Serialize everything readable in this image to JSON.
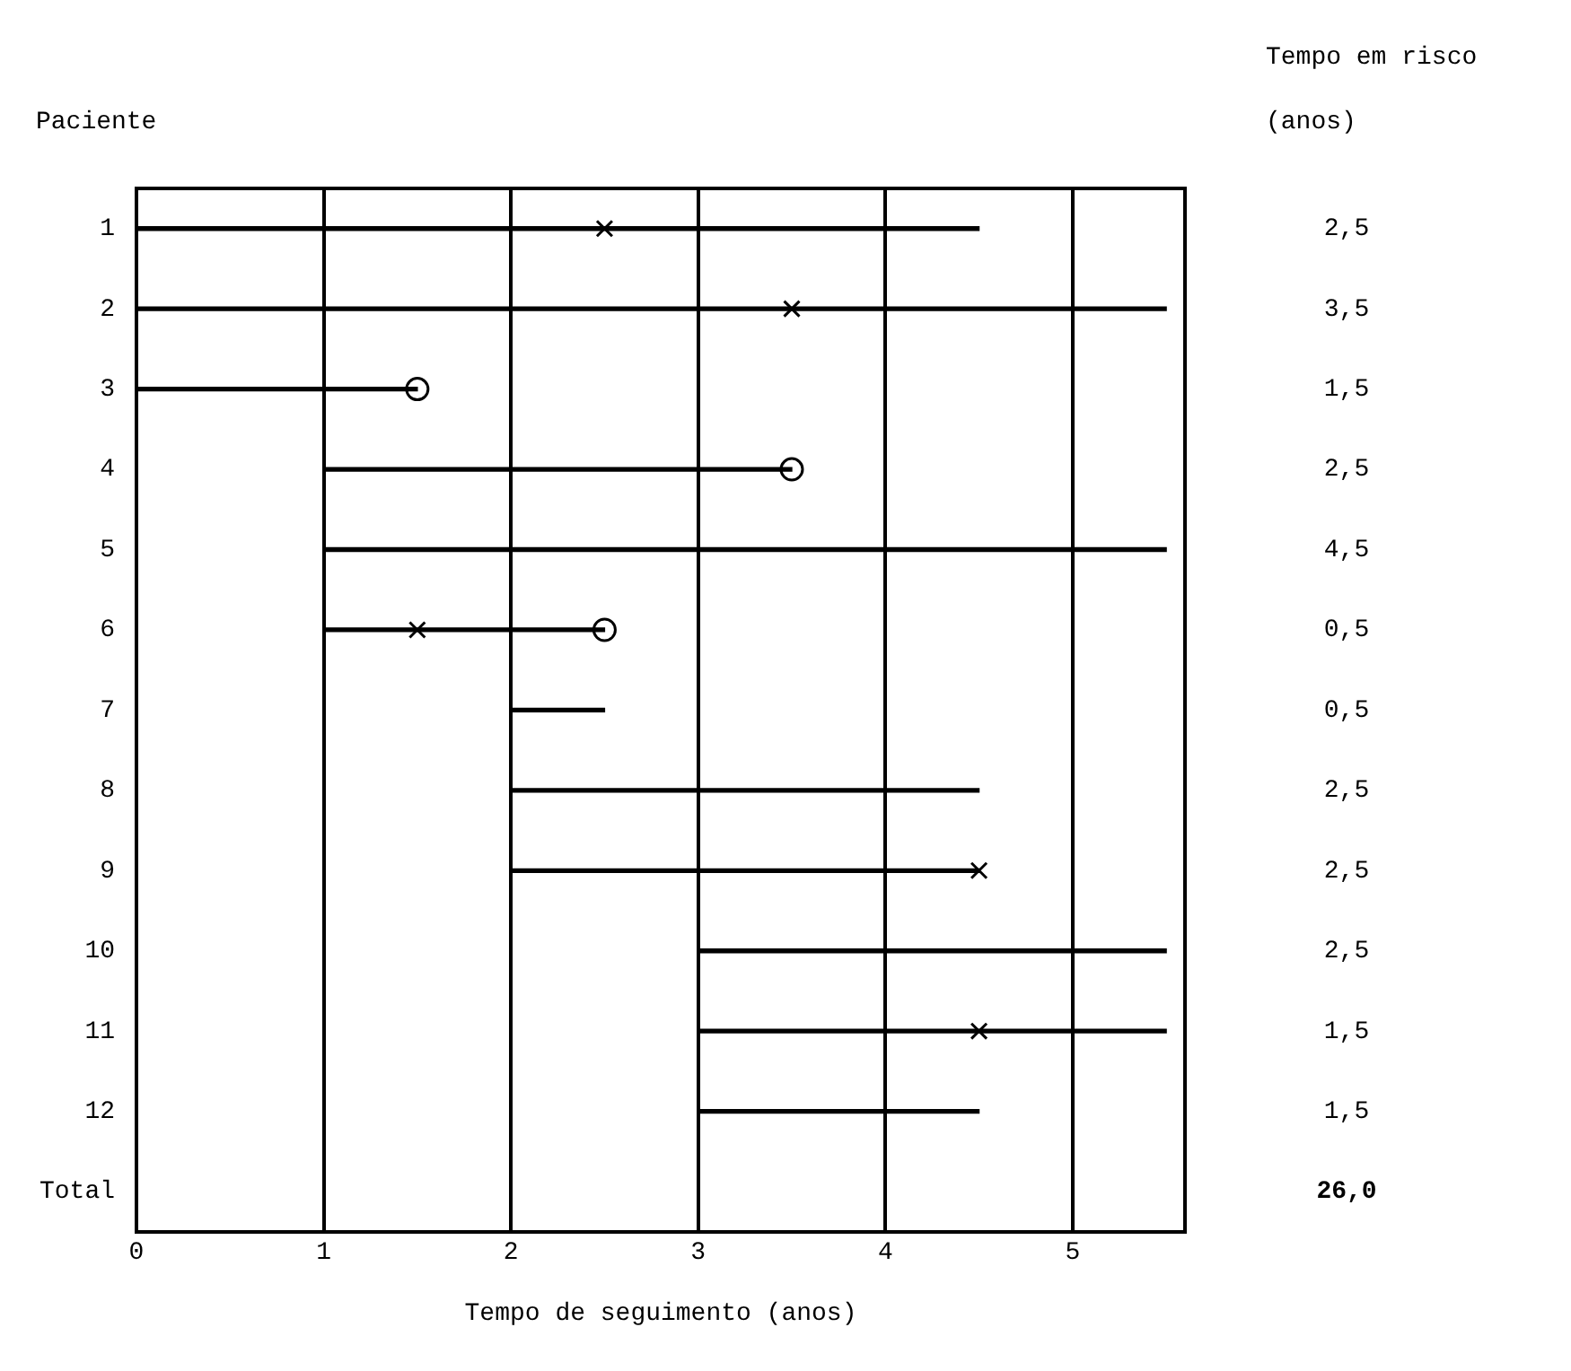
{
  "chart_data": {
    "type": "bar",
    "orientation": "horizontal",
    "ylabel": "Paciente",
    "xlabel": "Tempo de seguimento (anos)",
    "categories": [
      "1",
      "2",
      "3",
      "4",
      "5",
      "6",
      "7",
      "8",
      "9",
      "10",
      "11",
      "12",
      "Total"
    ],
    "series": [
      {
        "color": "#000000",
        "base": [
          0,
          0,
          0,
          1,
          1,
          1,
          2,
          2,
          2,
          3,
          3,
          3,
          null
        ],
        "values": [
          4.5,
          5.5,
          1.5,
          2.5,
          4.5,
          1.5,
          0.5,
          2.5,
          2.5,
          2.5,
          2.5,
          1.5,
          null
        ]
      },
      {
        "type": "scatter",
        "marker": "cross",
        "color": "#000000",
        "values": [
          2.5,
          3.5,
          null,
          null,
          null,
          1.5,
          null,
          null,
          4.5,
          null,
          4.5,
          null,
          null
        ]
      },
      {
        "type": "scatter",
        "marker": "circle",
        "color": "#000000",
        "values": [
          null,
          null,
          1.5,
          3.5,
          null,
          2.5,
          null,
          null,
          null,
          null,
          null,
          null,
          null
        ]
      }
    ],
    "xlim": [
      0,
      5.6
    ],
    "xticks": [
      0,
      1,
      2,
      3,
      4,
      5
    ],
    "grid": "x",
    "legend": false,
    "annotations": [
      "Tempo em risco (anos)",
      "2,5",
      "3,5",
      "1,5",
      "2,5",
      "4,5",
      "0,5",
      "0,5",
      "2,5",
      "2,5",
      "2,5",
      "1,5",
      "1,5",
      "26,0"
    ]
  }
}
